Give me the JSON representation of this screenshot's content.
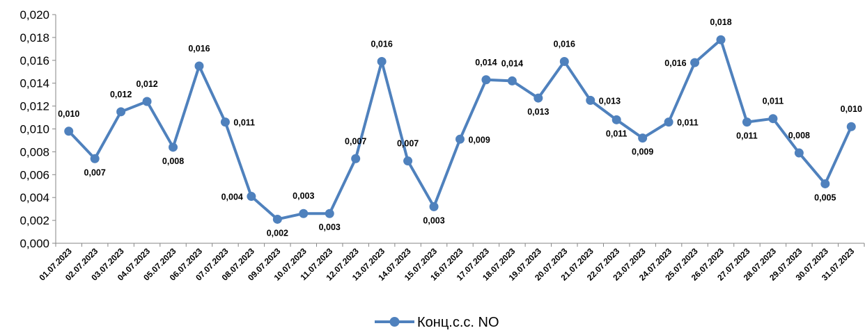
{
  "chart_data": {
    "type": "line",
    "title": "",
    "xlabel": "",
    "ylabel": "",
    "ylim": [
      0,
      0.02
    ],
    "yticks": [
      "0,000",
      "0,002",
      "0,004",
      "0,006",
      "0,008",
      "0,010",
      "0,012",
      "0,014",
      "0,016",
      "0,018",
      "0,020"
    ],
    "grid": false,
    "legend_position": "bottom",
    "categories": [
      "01.07.2023",
      "02.07.2023",
      "03.07.2023",
      "04.07.2023",
      "05.07.2023",
      "06.07.2023",
      "07.07.2023",
      "08.07.2023",
      "09.07.2023",
      "10.07.2023",
      "11.07.2023",
      "12.07.2023",
      "13.07.2023",
      "14.07.2023",
      "15.07.2023",
      "16.07.2023",
      "17.07.2023",
      "18.07.2023",
      "19.07.2023",
      "20.07.2023",
      "21.07.2023",
      "22.07.2023",
      "23.07.2023",
      "24.07.2023",
      "25.07.2023",
      "26.07.2023",
      "27.07.2023",
      "28.07.2023",
      "29.07.2023",
      "30.07.2023",
      "31.07.2023"
    ],
    "series": [
      {
        "name": "Конц.с.с. NO",
        "color": "#4F81BD",
        "values": [
          0.0098,
          0.0074,
          0.0115,
          0.0124,
          0.0084,
          0.0155,
          0.0106,
          0.0041,
          0.0021,
          0.0026,
          0.0026,
          0.0074,
          0.0159,
          0.0072,
          0.0032,
          0.0091,
          0.0143,
          0.0142,
          0.0127,
          0.0159,
          0.0125,
          0.0108,
          0.0092,
          0.0106,
          0.0158,
          0.0178,
          0.0106,
          0.0109,
          0.0079,
          0.0052,
          0.0102
        ],
        "labels": [
          "0,010",
          "0,007",
          "0,012",
          "0,012",
          "0,008",
          "0,016",
          "0,011",
          "0,004",
          "0,002",
          "0,003",
          "0,003",
          "0,007",
          "0,016",
          "0,007",
          "0,003",
          "0,009",
          "0,014",
          "0,014",
          "0,013",
          "0,016",
          "0,013",
          "0,011",
          "0,009",
          "0,011",
          "0,016",
          "0,018",
          "0,011",
          "0,011",
          "0,008",
          "0,005",
          "0,010"
        ],
        "label_positions": [
          "above",
          "below",
          "above",
          "above",
          "below",
          "above",
          "right",
          "left",
          "below",
          "above",
          "below",
          "above",
          "above",
          "above",
          "below",
          "right",
          "above",
          "above",
          "below",
          "above",
          "right",
          "below",
          "below",
          "right",
          "left",
          "above",
          "below",
          "above",
          "above",
          "below",
          "above"
        ]
      }
    ]
  }
}
